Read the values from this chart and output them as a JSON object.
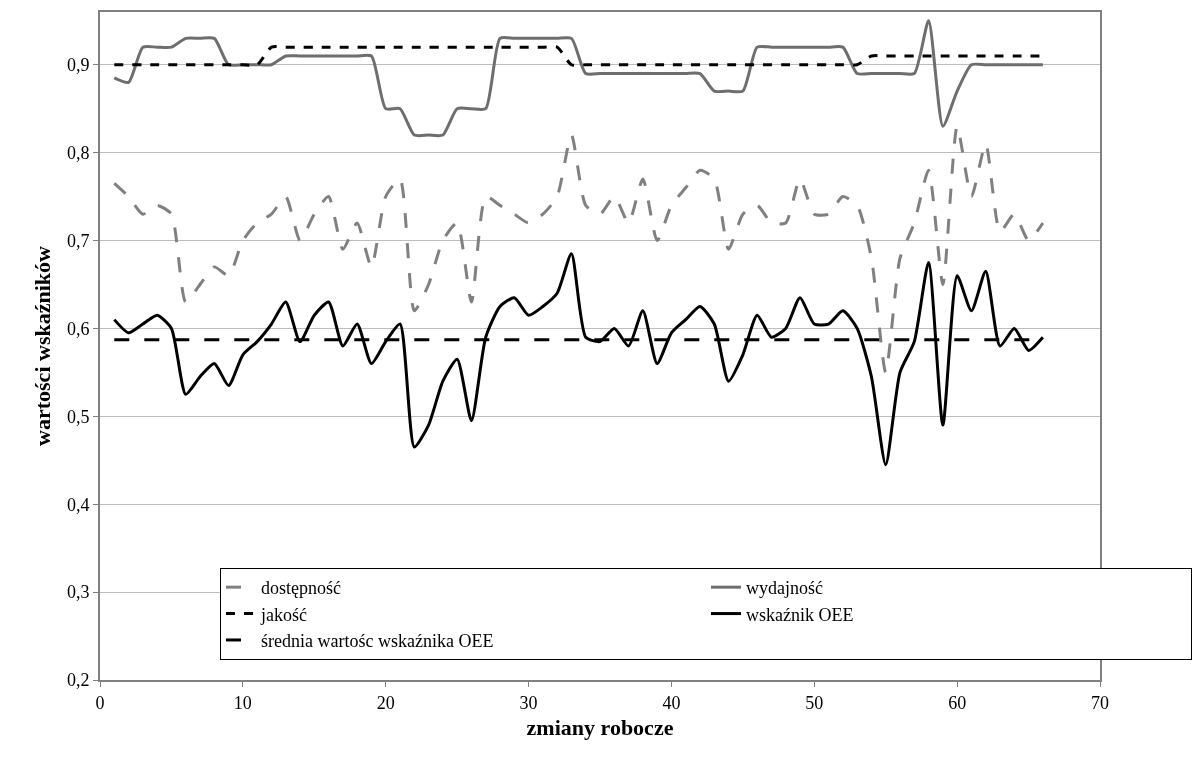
{
  "chart_data": {
    "type": "line",
    "xlabel": "zmiany robocze",
    "ylabel": "wartości wskaźników",
    "x": [
      1,
      2,
      3,
      4,
      5,
      6,
      7,
      8,
      9,
      10,
      11,
      12,
      13,
      14,
      15,
      16,
      17,
      18,
      19,
      20,
      21,
      22,
      23,
      24,
      25,
      26,
      27,
      28,
      29,
      30,
      31,
      32,
      33,
      34,
      35,
      36,
      37,
      38,
      39,
      40,
      41,
      42,
      43,
      44,
      45,
      46,
      47,
      48,
      49,
      50,
      51,
      52,
      53,
      54,
      55,
      56,
      57,
      58,
      59,
      60,
      61,
      62,
      63,
      64,
      65,
      66
    ],
    "series": [
      {
        "name": "dostępność",
        "color": "#808080",
        "line_style": "longdash",
        "values": [
          0.765,
          0.75,
          0.73,
          0.74,
          0.73,
          0.63,
          0.65,
          0.67,
          0.66,
          0.7,
          0.72,
          0.73,
          0.75,
          0.7,
          0.73,
          0.75,
          0.69,
          0.72,
          0.67,
          0.75,
          0.77,
          0.62,
          0.65,
          0.7,
          0.72,
          0.63,
          0.75,
          0.74,
          0.73,
          0.72,
          0.73,
          0.75,
          0.82,
          0.74,
          0.73,
          0.75,
          0.72,
          0.77,
          0.7,
          0.74,
          0.76,
          0.78,
          0.77,
          0.69,
          0.73,
          0.74,
          0.72,
          0.72,
          0.77,
          0.73,
          0.73,
          0.75,
          0.74,
          0.68,
          0.55,
          0.68,
          0.72,
          0.78,
          0.65,
          0.83,
          0.75,
          0.81,
          0.71,
          0.73,
          0.7,
          0.72
        ]
      },
      {
        "name": "wydajność",
        "color": "#6e6e6e",
        "line_style": "solid",
        "values": [
          0.885,
          0.88,
          0.92,
          0.92,
          0.92,
          0.93,
          0.93,
          0.93,
          0.9,
          0.9,
          0.9,
          0.9,
          0.91,
          0.91,
          0.91,
          0.91,
          0.91,
          0.91,
          0.91,
          0.85,
          0.85,
          0.82,
          0.82,
          0.82,
          0.85,
          0.85,
          0.85,
          0.93,
          0.93,
          0.93,
          0.93,
          0.93,
          0.93,
          0.89,
          0.89,
          0.89,
          0.89,
          0.89,
          0.89,
          0.89,
          0.89,
          0.89,
          0.87,
          0.87,
          0.87,
          0.92,
          0.92,
          0.92,
          0.92,
          0.92,
          0.92,
          0.92,
          0.89,
          0.89,
          0.89,
          0.89,
          0.89,
          0.95,
          0.83,
          0.87,
          0.9,
          0.9,
          0.9,
          0.9,
          0.9,
          0.9
        ]
      },
      {
        "name": "jakość",
        "color": "#000000",
        "line_style": "dash",
        "values": [
          0.9,
          0.9,
          0.9,
          0.9,
          0.9,
          0.9,
          0.9,
          0.9,
          0.9,
          0.9,
          0.9,
          0.92,
          0.92,
          0.92,
          0.92,
          0.92,
          0.92,
          0.92,
          0.92,
          0.92,
          0.92,
          0.92,
          0.92,
          0.92,
          0.92,
          0.92,
          0.92,
          0.92,
          0.92,
          0.92,
          0.92,
          0.92,
          0.9,
          0.9,
          0.9,
          0.9,
          0.9,
          0.9,
          0.9,
          0.9,
          0.9,
          0.9,
          0.9,
          0.9,
          0.9,
          0.9,
          0.9,
          0.9,
          0.9,
          0.9,
          0.9,
          0.9,
          0.9,
          0.91,
          0.91,
          0.91,
          0.91,
          0.91,
          0.91,
          0.91,
          0.91,
          0.91,
          0.91,
          0.91,
          0.91,
          0.91
        ]
      },
      {
        "name": "wskaźnik OEE",
        "color": "#000000",
        "line_style": "solid",
        "values": [
          0.61,
          0.595,
          0.605,
          0.615,
          0.6,
          0.525,
          0.545,
          0.56,
          0.535,
          0.57,
          0.585,
          0.605,
          0.63,
          0.585,
          0.615,
          0.63,
          0.58,
          0.605,
          0.56,
          0.585,
          0.605,
          0.465,
          0.49,
          0.54,
          0.565,
          0.495,
          0.59,
          0.625,
          0.635,
          0.615,
          0.625,
          0.64,
          0.685,
          0.59,
          0.585,
          0.6,
          0.58,
          0.62,
          0.56,
          0.595,
          0.61,
          0.625,
          0.605,
          0.54,
          0.57,
          0.615,
          0.59,
          0.6,
          0.635,
          0.605,
          0.605,
          0.62,
          0.6,
          0.545,
          0.445,
          0.55,
          0.585,
          0.675,
          0.49,
          0.66,
          0.62,
          0.665,
          0.58,
          0.6,
          0.575,
          0.59
        ]
      },
      {
        "name": "średnia wartośc wskaźnika OEE",
        "color": "#000000",
        "line_style": "longdash",
        "x": [
          1,
          66
        ],
        "values": [
          0.587,
          0.587
        ]
      }
    ],
    "xlim": [
      0,
      70
    ],
    "xticks": [
      0,
      10,
      20,
      30,
      40,
      50,
      60,
      70
    ],
    "ylim": [
      0.2,
      0.96
    ],
    "yticks": [
      {
        "value": 0.2,
        "label": "0,2"
      },
      {
        "value": 0.3,
        "label": "0,3"
      },
      {
        "value": 0.4,
        "label": "0,4"
      },
      {
        "value": 0.5,
        "label": "0,5"
      },
      {
        "value": 0.6,
        "label": "0,6"
      },
      {
        "value": 0.7,
        "label": "0,7"
      },
      {
        "value": 0.8,
        "label": "0,8"
      },
      {
        "value": 0.9,
        "label": "0,9"
      }
    ],
    "grid": "y",
    "legend": "bottom left",
    "marker": "none"
  }
}
